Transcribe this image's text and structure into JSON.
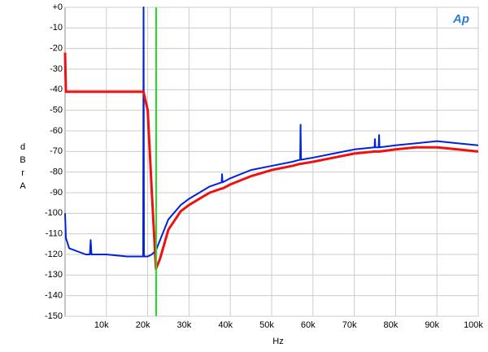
{
  "chart_data": {
    "type": "line",
    "logo": "Ap",
    "x_label": "Hz",
    "y_label": "dBrA",
    "x": [
      0,
      200,
      1000,
      5000,
      6000,
      6200,
      6400,
      10000,
      15000,
      18900,
      19000,
      19100,
      20000,
      21000,
      22000,
      23000,
      25000,
      28000,
      30000,
      35000,
      37900,
      38000,
      38100,
      40000,
      45000,
      50000,
      55000,
      56900,
      57000,
      57100,
      60000,
      65000,
      70000,
      74900,
      75000,
      75100,
      75900,
      76000,
      76100,
      80000,
      85000,
      90000,
      95000,
      100000
    ],
    "series": [
      {
        "name": "Blue trace",
        "color": "#0022dd",
        "width": 2,
        "values": [
          -100,
          -112,
          -117,
          -120,
          -120,
          -113,
          -120,
          -120,
          -121,
          -121,
          0,
          -121,
          -121,
          -120,
          -118,
          -113,
          -103,
          -96,
          -93,
          -87,
          -85,
          -81,
          -85,
          -83,
          -79,
          -77,
          -75,
          -74,
          -57,
          -74,
          -73,
          -71,
          -69,
          -68,
          -64,
          -68,
          -68,
          -62,
          -68,
          -67,
          -66,
          -65,
          -66,
          -67
        ]
      },
      {
        "name": "Red trace",
        "color": "#ee1111",
        "width": 3,
        "values": [
          -22,
          -41,
          -41,
          -41,
          -41,
          -41,
          -41,
          -41,
          -41,
          -41,
          -41,
          -42,
          -50,
          -90,
          -127,
          -122,
          -108,
          -99,
          -96,
          -90,
          -88,
          -88,
          -88,
          -86,
          -82,
          -79,
          -77,
          -76,
          -76,
          -76,
          -75,
          -73,
          -71,
          -70,
          -70,
          -70,
          -70,
          -70,
          -70,
          -69,
          -68,
          -68,
          -69,
          -70
        ]
      }
    ],
    "vline": {
      "x": 22050,
      "color": "#22dd22"
    },
    "xlim": [
      0,
      100000
    ],
    "ylim": [
      -150,
      0
    ],
    "xticks": [
      {
        "value": 10000,
        "label": "10k"
      },
      {
        "value": 20000,
        "label": "20k"
      },
      {
        "value": 30000,
        "label": "30k"
      },
      {
        "value": 40000,
        "label": "40k"
      },
      {
        "value": 50000,
        "label": "50k"
      },
      {
        "value": 60000,
        "label": "60k"
      },
      {
        "value": 70000,
        "label": "70k"
      },
      {
        "value": 80000,
        "label": "80k"
      },
      {
        "value": 90000,
        "label": "90k"
      },
      {
        "value": 100000,
        "label": "100k"
      }
    ],
    "yticks": [
      {
        "value": 0,
        "label": "+0"
      },
      -10,
      -20,
      -30,
      -40,
      -50,
      -60,
      -70,
      -80,
      -90,
      -100,
      -110,
      -120,
      -130,
      -140,
      -150
    ],
    "grid": true
  }
}
